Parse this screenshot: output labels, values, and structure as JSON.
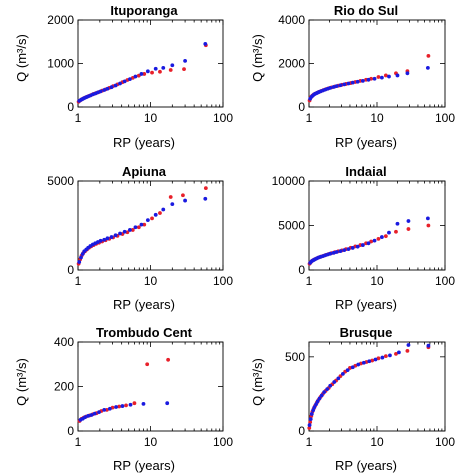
{
  "chart_data": [
    {
      "type": "scatter",
      "title": "Ituporanga",
      "xlabel": "RP (years)",
      "ylabel": "Q (m³/s)",
      "x_scale": "log",
      "xlim": [
        1,
        100
      ],
      "ylim": [
        0,
        2000
      ],
      "x_ticks": [
        1,
        10,
        100
      ],
      "y_ticks": [
        0,
        1000,
        2000
      ],
      "series": [
        {
          "color": "#e8202a",
          "x": [
            1.02,
            1.07,
            1.12,
            1.18,
            1.25,
            1.33,
            1.42,
            1.52,
            1.64,
            1.78,
            1.95,
            2.15,
            2.4,
            2.7,
            3.05,
            3.5,
            4.1,
            4.8,
            5.7,
            6.9,
            8.2,
            10.5,
            13.5,
            19,
            29,
            58
          ],
          "y": [
            120,
            150,
            175,
            195,
            215,
            235,
            255,
            275,
            300,
            320,
            345,
            375,
            405,
            440,
            480,
            520,
            570,
            620,
            670,
            720,
            760,
            790,
            810,
            850,
            870,
            1420
          ]
        },
        {
          "color": "#1a1ae0",
          "x": [
            1.04,
            1.1,
            1.16,
            1.22,
            1.3,
            1.38,
            1.48,
            1.6,
            1.73,
            1.88,
            2.05,
            2.3,
            2.55,
            2.9,
            3.3,
            3.8,
            4.4,
            5.2,
            6.2,
            7.5,
            9.2,
            11.8,
            15,
            20,
            30,
            57
          ],
          "y": [
            140,
            165,
            185,
            205,
            225,
            245,
            265,
            290,
            310,
            335,
            360,
            390,
            420,
            455,
            495,
            540,
            590,
            640,
            700,
            760,
            820,
            880,
            900,
            960,
            1060,
            1450
          ]
        }
      ]
    },
    {
      "type": "scatter",
      "title": "Rio do Sul",
      "xlabel": "RP (years)",
      "ylabel": "Q (m³/s)",
      "x_scale": "log",
      "xlim": [
        1,
        100
      ],
      "ylim": [
        0,
        4000
      ],
      "x_ticks": [
        1,
        10,
        100
      ],
      "y_ticks": [
        0,
        2000,
        4000
      ],
      "series": [
        {
          "color": "#e8202a",
          "x": [
            1.02,
            1.07,
            1.12,
            1.18,
            1.25,
            1.33,
            1.42,
            1.52,
            1.64,
            1.78,
            1.95,
            2.15,
            2.4,
            2.7,
            3.05,
            3.5,
            4.1,
            4.8,
            5.7,
            6.9,
            8.2,
            10.5,
            13.5,
            19,
            28,
            57
          ],
          "y": [
            300,
            450,
            520,
            580,
            620,
            660,
            700,
            740,
            780,
            820,
            860,
            900,
            940,
            980,
            1020,
            1060,
            1100,
            1150,
            1200,
            1250,
            1300,
            1380,
            1450,
            1550,
            1650,
            2350
          ]
        },
        {
          "color": "#1a1ae0",
          "x": [
            1.04,
            1.1,
            1.16,
            1.22,
            1.3,
            1.38,
            1.48,
            1.6,
            1.73,
            1.88,
            2.05,
            2.3,
            2.55,
            2.9,
            3.3,
            3.8,
            4.4,
            5.2,
            6.2,
            7.5,
            9.2,
            11.8,
            15,
            20,
            28,
            56
          ],
          "y": [
            380,
            480,
            550,
            600,
            640,
            680,
            720,
            760,
            800,
            840,
            880,
            920,
            960,
            1000,
            1040,
            1080,
            1120,
            1160,
            1200,
            1250,
            1300,
            1350,
            1400,
            1450,
            1550,
            1800
          ]
        }
      ]
    },
    {
      "type": "scatter",
      "title": "Apiuna",
      "xlabel": "RP (years)",
      "ylabel": "Q (m³/s)",
      "x_scale": "log",
      "xlim": [
        1,
        100
      ],
      "ylim": [
        0,
        5000
      ],
      "x_ticks": [
        1,
        10,
        100
      ],
      "y_ticks": [
        0,
        5000
      ],
      "series": [
        {
          "color": "#e8202a",
          "x": [
            1.02,
            1.07,
            1.12,
            1.18,
            1.25,
            1.33,
            1.42,
            1.52,
            1.64,
            1.78,
            1.95,
            2.15,
            2.4,
            2.7,
            3.05,
            3.5,
            4.1,
            4.8,
            5.7,
            6.9,
            8.2,
            10.5,
            13.5,
            19,
            28,
            58
          ],
          "y": [
            350,
            600,
            800,
            950,
            1050,
            1150,
            1250,
            1330,
            1400,
            1470,
            1530,
            1600,
            1670,
            1750,
            1830,
            1920,
            2020,
            2120,
            2250,
            2400,
            2550,
            2900,
            3200,
            4100,
            4200,
            4600
          ]
        },
        {
          "color": "#1a1ae0",
          "x": [
            1.04,
            1.1,
            1.16,
            1.22,
            1.3,
            1.38,
            1.48,
            1.6,
            1.73,
            1.88,
            2.05,
            2.3,
            2.55,
            2.9,
            3.3,
            3.8,
            4.4,
            5.2,
            6.2,
            7.5,
            9.2,
            11.8,
            15,
            20,
            30,
            57
          ],
          "y": [
            450,
            700,
            900,
            1050,
            1150,
            1250,
            1350,
            1430,
            1500,
            1570,
            1640,
            1700,
            1780,
            1850,
            1950,
            2050,
            2150,
            2250,
            2400,
            2550,
            2800,
            3100,
            3400,
            3700,
            3900,
            4000
          ]
        }
      ]
    },
    {
      "type": "scatter",
      "title": "Indaial",
      "xlabel": "RP (years)",
      "ylabel": "Q (m³/s)",
      "x_scale": "log",
      "xlim": [
        1,
        100
      ],
      "ylim": [
        0,
        10000
      ],
      "x_ticks": [
        1,
        10,
        100
      ],
      "y_ticks": [
        0,
        5000,
        10000
      ],
      "series": [
        {
          "color": "#e8202a",
          "x": [
            1.02,
            1.07,
            1.12,
            1.18,
            1.25,
            1.33,
            1.42,
            1.52,
            1.64,
            1.78,
            1.95,
            2.15,
            2.4,
            2.7,
            3.05,
            3.5,
            4.1,
            4.8,
            5.7,
            6.9,
            8.2,
            10.5,
            13.5,
            19,
            29,
            57
          ],
          "y": [
            700,
            900,
            1050,
            1150,
            1250,
            1350,
            1430,
            1520,
            1600,
            1700,
            1800,
            1900,
            2000,
            2100,
            2200,
            2350,
            2500,
            2650,
            2800,
            3000,
            3200,
            3500,
            3800,
            4300,
            4600,
            5000
          ]
        },
        {
          "color": "#1a1ae0",
          "x": [
            1.04,
            1.1,
            1.16,
            1.22,
            1.3,
            1.38,
            1.48,
            1.6,
            1.73,
            1.88,
            2.05,
            2.3,
            2.55,
            2.9,
            3.3,
            3.8,
            4.4,
            5.2,
            6.2,
            7.5,
            9.2,
            11.8,
            15,
            20,
            29,
            56
          ],
          "y": [
            800,
            1000,
            1100,
            1200,
            1300,
            1400,
            1480,
            1560,
            1650,
            1740,
            1830,
            1920,
            2020,
            2120,
            2230,
            2350,
            2480,
            2620,
            2800,
            3000,
            3300,
            3700,
            4200,
            5200,
            5500,
            5800
          ]
        }
      ]
    },
    {
      "type": "scatter",
      "title": "Trombudo Cent",
      "xlabel": "RP (years)",
      "ylabel": "Q (m³/s)",
      "x_scale": "log",
      "xlim": [
        1,
        100
      ],
      "ylim": [
        0,
        400
      ],
      "x_ticks": [
        1,
        10,
        100
      ],
      "y_ticks": [
        0,
        200,
        400
      ],
      "series": [
        {
          "color": "#e8202a",
          "x": [
            1.05,
            1.12,
            1.2,
            1.3,
            1.45,
            1.6,
            1.8,
            2.1,
            2.5,
            3.0,
            3.7,
            4.6,
            6.0,
            9.0,
            17.5
          ],
          "y": [
            45,
            55,
            60,
            65,
            70,
            75,
            80,
            90,
            95,
            105,
            110,
            115,
            125,
            300,
            320
          ]
        },
        {
          "color": "#1a1ae0",
          "x": [
            1.08,
            1.16,
            1.25,
            1.38,
            1.53,
            1.7,
            1.95,
            2.3,
            2.75,
            3.35,
            4.1,
            5.3,
            8.0,
            17
          ],
          "y": [
            50,
            55,
            62,
            68,
            72,
            78,
            85,
            95,
            100,
            108,
            112,
            118,
            122,
            125
          ]
        }
      ]
    },
    {
      "type": "scatter",
      "title": "Brusque",
      "xlabel": "RP (years)",
      "ylabel": "Q (m³/s)",
      "x_scale": "log",
      "xlim": [
        1,
        100
      ],
      "ylim": [
        0,
        600
      ],
      "x_ticks": [
        1,
        10,
        100
      ],
      "y_ticks": [
        0,
        500
      ],
      "series": [
        {
          "color": "#e8202a",
          "x": [
            1.01,
            1.04,
            1.08,
            1.12,
            1.17,
            1.23,
            1.3,
            1.38,
            1.48,
            1.6,
            1.75,
            1.95,
            2.2,
            2.5,
            2.9,
            3.4,
            4.0,
            4.8,
            5.8,
            7.0,
            8.5,
            10.5,
            13.5,
            19,
            28,
            57
          ],
          "y": [
            20,
            60,
            100,
            130,
            150,
            170,
            190,
            210,
            230,
            250,
            270,
            290,
            315,
            340,
            370,
            400,
            425,
            440,
            455,
            465,
            475,
            490,
            505,
            520,
            540,
            565
          ]
        },
        {
          "color": "#1a1ae0",
          "x": [
            1.02,
            1.06,
            1.1,
            1.15,
            1.2,
            1.27,
            1.34,
            1.43,
            1.54,
            1.67,
            1.85,
            2.05,
            2.35,
            2.7,
            3.15,
            3.7,
            4.4,
            5.3,
            6.4,
            7.7,
            9.5,
            12,
            15.5,
            21,
            29,
            57
          ],
          "y": [
            40,
            80,
            115,
            140,
            160,
            180,
            200,
            220,
            240,
            262,
            282,
            305,
            330,
            355,
            385,
            410,
            430,
            448,
            460,
            470,
            482,
            495,
            510,
            530,
            580,
            575
          ]
        }
      ]
    }
  ]
}
